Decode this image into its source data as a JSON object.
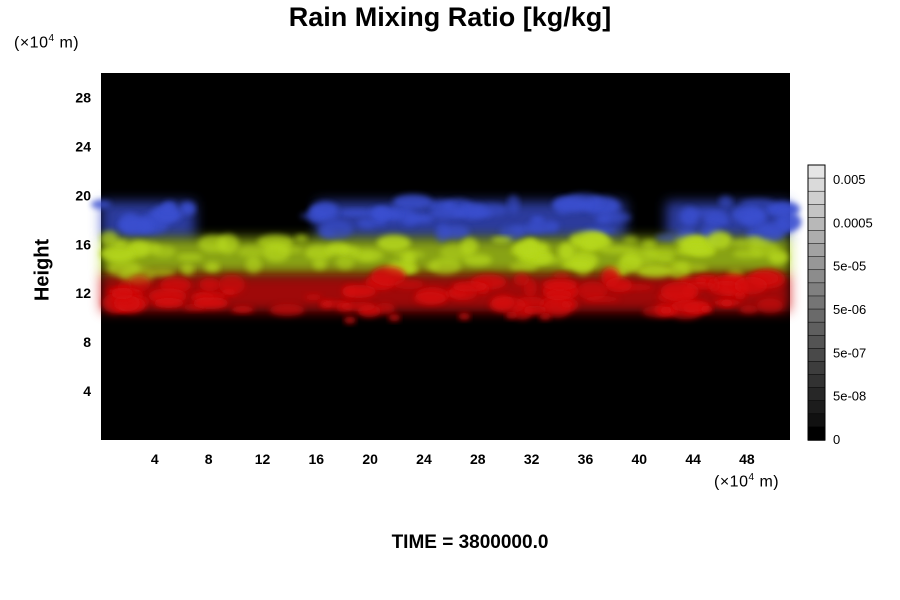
{
  "chart_data": {
    "type": "heatmap",
    "title": "Rain Mixing Ratio [kg/kg]",
    "ylabel": "Height",
    "x_unit": {
      "prefix": "(×10",
      "exp": "4",
      "suffix": " m)"
    },
    "y_unit": {
      "prefix": "(×10",
      "exp": "4",
      "suffix": " m)"
    },
    "xlim": [
      0,
      51.2
    ],
    "ylim": [
      0,
      30
    ],
    "x_ticks": [
      4,
      8,
      12,
      16,
      20,
      24,
      28,
      32,
      36,
      40,
      44,
      48
    ],
    "y_ticks": [
      4,
      8,
      12,
      16,
      20,
      24,
      28
    ],
    "colorbar": {
      "tick_labels": [
        "0.005",
        "0.0005",
        "5e-05",
        "5e-06",
        "5e-07",
        "5e-08",
        "0"
      ],
      "levels": 21
    },
    "bands": [
      {
        "name": "blue",
        "color": "#3a4fd0",
        "y_range": [
          16.5,
          19.5
        ],
        "x_ranges": [
          [
            0,
            7
          ],
          [
            16,
            39
          ],
          [
            42,
            51.2
          ]
        ]
      },
      {
        "name": "yellow-green",
        "color": "#b6d81a",
        "y_range": [
          13.5,
          16.5
        ],
        "x_ranges": [
          [
            0,
            51.2
          ]
        ]
      },
      {
        "name": "red",
        "color": "#d41010",
        "y_range": [
          10.5,
          13.5
        ],
        "x_ranges": [
          [
            0,
            51.2
          ]
        ]
      }
    ],
    "background_color": "#000000"
  },
  "time_label": "TIME = 3800000.0"
}
